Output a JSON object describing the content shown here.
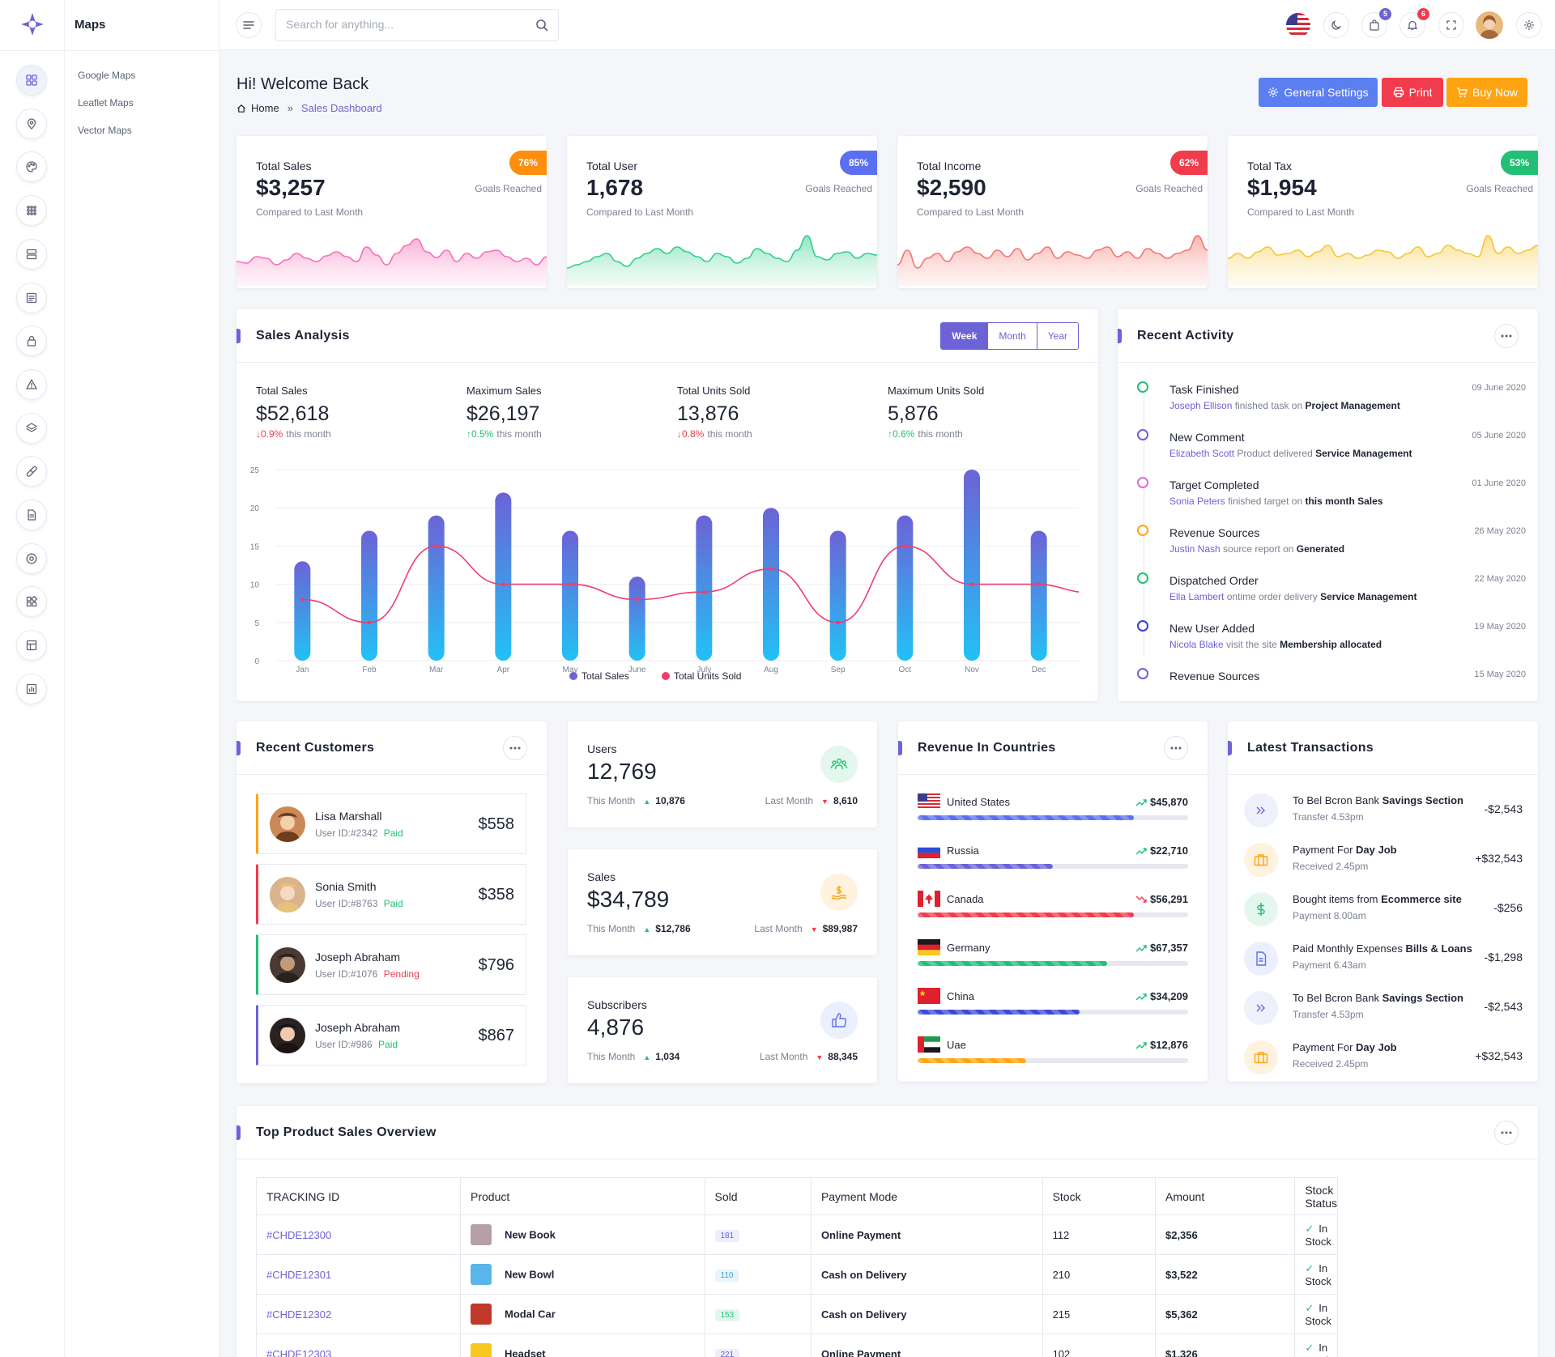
{
  "sidebar": {
    "title": "Maps",
    "links": [
      "Google Maps",
      "Leaflet Maps",
      "Vector Maps"
    ]
  },
  "header": {
    "search_placeholder": "Search for anything...",
    "cart_count": "5",
    "notif_count": "6"
  },
  "page": {
    "title": "Hi! Welcome Back",
    "crumb_home": "Home",
    "crumb_current": "Sales Dashboard",
    "btn_settings": "General Settings",
    "btn_print": "Print",
    "btn_buy": "Buy Now"
  },
  "stats": [
    {
      "label": "Total Sales",
      "value": "$3,257",
      "sub": "Compared to Last Month",
      "pct": "76%",
      "goal": "Goals Reached",
      "color": "#fe8e0d"
    },
    {
      "label": "Total User",
      "value": "1,678",
      "sub": "Compared to Last Month",
      "pct": "85%",
      "goal": "Goals Reached",
      "color": "#5b6ff1"
    },
    {
      "label": "Total Income",
      "value": "$2,590",
      "sub": "Compared to Last Month",
      "pct": "62%",
      "goal": "Goals Reached",
      "color": "#f03c4d"
    },
    {
      "label": "Total Tax",
      "value": "$1,954",
      "sub": "Compared to Last Month",
      "pct": "53%",
      "goal": "Goals Reached",
      "color": "#22bf75"
    }
  ],
  "sales_analysis": {
    "title": "Sales Analysis",
    "tabs": [
      "Week",
      "Month",
      "Year"
    ],
    "metrics": [
      {
        "label": "Total Sales",
        "value": "$52,618",
        "change": "0.9%",
        "dir": "down",
        "suffix": "this month"
      },
      {
        "label": "Maximum Sales",
        "value": "$26,197",
        "change": "0.5%",
        "dir": "up",
        "suffix": "this month"
      },
      {
        "label": "Total Units Sold",
        "value": "13,876",
        "change": "0.8%",
        "dir": "down",
        "suffix": "this month"
      },
      {
        "label": "Maximum Units Sold",
        "value": "5,876",
        "change": "0.6%",
        "dir": "up",
        "suffix": "this month"
      }
    ]
  },
  "chart_data": {
    "type": "bar",
    "categories": [
      "Jan",
      "Feb",
      "Mar",
      "Apr",
      "May",
      "June",
      "July",
      "Aug",
      "Sep",
      "Oct",
      "Nov",
      "Dec"
    ],
    "series": [
      {
        "name": "Total Sales",
        "type": "bar",
        "values": [
          13,
          17,
          19,
          22,
          17,
          11,
          19,
          20,
          17,
          19,
          25,
          17
        ]
      },
      {
        "name": "Total Units Sold",
        "type": "line",
        "values": [
          8,
          5,
          15,
          10,
          10,
          8,
          9,
          12,
          5,
          15,
          10,
          10
        ]
      }
    ],
    "ylim": [
      0,
      25
    ],
    "yticks": [
      0,
      5,
      10,
      15,
      20,
      25
    ],
    "grid": true,
    "legend": "bottom",
    "colors": {
      "bar_top": "#6c63d6",
      "bar_bottom": "#22c1f5",
      "line": "#f03c6b"
    }
  },
  "activity": {
    "title": "Recent Activity",
    "items": [
      {
        "title": "Task Finished",
        "date": "09 June 2020",
        "who": "Joseph Ellison",
        "mid": "finished task on",
        "obj": "Project Management",
        "color": "#22bf75"
      },
      {
        "title": "New Comment",
        "date": "05 June 2020",
        "who": "Elizabeth Scott",
        "mid": "Product delivered",
        "obj": "Service Management",
        "color": "#6c63d6"
      },
      {
        "title": "Target Completed",
        "date": "01 June 2020",
        "who": "Sonia Peters",
        "mid": "finished target on",
        "obj": "this month Sales",
        "color": "#e26bd6"
      },
      {
        "title": "Revenue Sources",
        "date": "26 May 2020",
        "who": "Justin Nash",
        "mid": "source report on",
        "obj": "Generated",
        "color": "#fea413"
      },
      {
        "title": "Dispatched Order",
        "date": "22 May 2020",
        "who": "Ella Lambert",
        "mid": "ontime order delivery",
        "obj": "Service Management",
        "color": "#22bf75"
      },
      {
        "title": "New User Added",
        "date": "19 May 2020",
        "who": "Nicola Blake",
        "mid": "visit the site",
        "obj": "Membership allocated",
        "color": "#3c3ad8"
      },
      {
        "title": "Revenue Sources",
        "date": "15 May 2020",
        "who": "",
        "mid": "",
        "obj": "",
        "color": "#6c63d6"
      }
    ]
  },
  "customers": {
    "title": "Recent Customers",
    "items": [
      {
        "name": "Lisa Marshall",
        "uid": "User ID:#2342",
        "status": "Paid",
        "amount": "$558",
        "color": "#fea413"
      },
      {
        "name": "Sonia Smith",
        "uid": "User ID:#8763",
        "status": "Paid",
        "amount": "$358",
        "color": "#f03c4d"
      },
      {
        "name": "Joseph Abraham",
        "uid": "User ID:#1076",
        "status": "Pending",
        "amount": "$796",
        "color": "#22bf75"
      },
      {
        "name": "Joseph Abraham",
        "uid": "User ID:#986",
        "status": "Paid",
        "amount": "$867",
        "color": "#6c63d6"
      }
    ]
  },
  "mini_stats": [
    {
      "label": "Users",
      "value": "12,769",
      "this_label": "This Month",
      "this_val": "10,876",
      "last_label": "Last Month",
      "last_val": "8,610",
      "icon": "users-icon"
    },
    {
      "label": "Sales",
      "value": "$34,789",
      "this_label": "This Month",
      "this_val": "$12,786",
      "last_label": "Last Month",
      "last_val": "$89,987",
      "icon": "money-icon"
    },
    {
      "label": "Subscribers",
      "value": "4,876",
      "this_label": "This Month",
      "this_val": "1,034",
      "last_label": "Last Month",
      "last_val": "88,345",
      "icon": "thumbs-up-icon"
    }
  ],
  "countries": {
    "title": "Revenue In Countries",
    "items": [
      {
        "name": "United States",
        "amount": "$45,870",
        "trend": "up",
        "progress": 0.8,
        "color": "#5b6ff1"
      },
      {
        "name": "Russia",
        "amount": "$22,710",
        "trend": "up",
        "progress": 0.5,
        "color": "#6c63d6"
      },
      {
        "name": "Canada",
        "amount": "$56,291",
        "trend": "down",
        "progress": 0.8,
        "color": "#f03c4d"
      },
      {
        "name": "Germany",
        "amount": "$67,357",
        "trend": "up",
        "progress": 0.7,
        "color": "#22bf75"
      },
      {
        "name": "China",
        "amount": "$34,209",
        "trend": "up",
        "progress": 0.6,
        "color": "#3c4ad8"
      },
      {
        "name": "Uae",
        "amount": "$12,876",
        "trend": "up",
        "progress": 0.4,
        "color": "#fea413"
      }
    ]
  },
  "transactions": {
    "title": "Latest Transactions",
    "items": [
      {
        "pre": "To Bel Bcron Bank",
        "bold": "Savings Section",
        "sub": "Transfer 4.53pm",
        "amount": "-$2,543",
        "icon": "double-chevron-icon"
      },
      {
        "pre": "Payment For ",
        "bold": "Day Job",
        "sub": "Received 2.45pm",
        "amount": "+$32,543",
        "icon": "briefcase-icon"
      },
      {
        "pre": "Bought items from",
        "bold": "Ecommerce site",
        "sub": "Payment 8.00am",
        "amount": "-$256",
        "icon": "dollar-icon"
      },
      {
        "pre": "Paid Monthly Expenses",
        "bold": "Bills & Loans",
        "sub": "Payment 6.43am",
        "amount": "-$1,298",
        "icon": "document-icon"
      },
      {
        "pre": "To Bel Bcron Bank",
        "bold": "Savings Section",
        "sub": "Transfer 4.53pm",
        "amount": "-$2,543",
        "icon": "double-chevron-icon"
      },
      {
        "pre": "Payment For ",
        "bold": "Day Job",
        "sub": "Received 2.45pm",
        "amount": "+$32,543",
        "icon": "briefcase-icon"
      }
    ]
  },
  "products": {
    "title": "Top Product Sales Overview",
    "columns": [
      "TRACKING ID",
      "Product",
      "Sold",
      "Payment Mode",
      "Stock",
      "Amount",
      "Stock Status"
    ],
    "rows": [
      {
        "id": "#CHDE12300",
        "product": "New Book",
        "sold": "181",
        "mode": "Online Payment",
        "stock": "112",
        "amount": "$2,356",
        "status": "In Stock"
      },
      {
        "id": "#CHDE12301",
        "product": "New Bowl",
        "sold": "110",
        "mode": "Cash on Delivery",
        "stock": "210",
        "amount": "$3,522",
        "status": "In Stock"
      },
      {
        "id": "#CHDE12302",
        "product": "Modal Car",
        "sold": "153",
        "mode": "Cash on Delivery",
        "stock": "215",
        "amount": "$5,362",
        "status": "In Stock"
      },
      {
        "id": "#CHDE12303",
        "product": "Headset",
        "sold": "221",
        "mode": "Online Payment",
        "stock": "102",
        "amount": "$1,326",
        "status": "In Stock"
      }
    ]
  }
}
